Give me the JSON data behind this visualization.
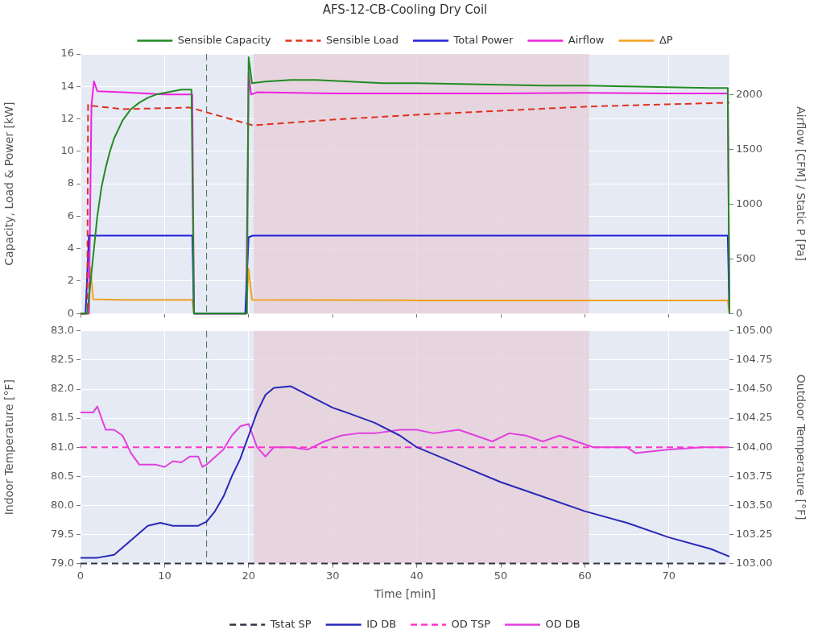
{
  "chart_data": [
    {
      "type": "line",
      "title": "AFS-12-CB-Cooling Dry Coil",
      "ylabel": "Capacity, Load & Power [kW]",
      "y2label": "Airflow [CFM] / Static P [Pa]",
      "xlim": [
        0,
        77.2
      ],
      "xticks": [
        {
          "value": 0,
          "label": null
        },
        {
          "value": 10,
          "label": null
        },
        {
          "value": 20,
          "label": null
        },
        {
          "value": 30,
          "label": null
        },
        {
          "value": 40,
          "label": null
        },
        {
          "value": 50,
          "label": null
        },
        {
          "value": 60,
          "label": null
        },
        {
          "value": 70,
          "label": null
        }
      ],
      "ylim": [
        0,
        16
      ],
      "yticks": [
        0,
        2,
        4,
        6,
        8,
        10,
        12,
        14,
        16
      ],
      "y2lim": [
        0,
        2370
      ],
      "y2ticks": [
        0,
        500,
        1000,
        1500,
        2000
      ],
      "tick_labels": "y",
      "grid": true,
      "legend": "top",
      "marker": "none",
      "bands": [
        {
          "axis": "x",
          "from": 20.6,
          "to": 60.5,
          "color": "#e6d0da"
        }
      ],
      "ref_lines": [
        {
          "axis": "x",
          "value": 15,
          "color": "#3f6f4f",
          "line_style": "dashed"
        }
      ],
      "series": [
        {
          "name": "Sensible Capacity",
          "color": "#228b22",
          "line_style": "solid",
          "x": [
            0,
            0.8,
            1.2,
            1.6,
            2,
            2.5,
            3,
            3.5,
            4,
            5,
            6,
            7,
            8,
            9,
            10,
            11,
            12,
            13.2,
            13.5,
            19.8,
            20,
            20.4,
            22,
            25,
            28,
            32,
            36,
            40,
            45,
            50,
            55,
            60,
            65,
            70,
            75,
            77,
            77.2
          ],
          "values": [
            0,
            0,
            2,
            4,
            6,
            7.8,
            9,
            10,
            10.8,
            11.9,
            12.6,
            13,
            13.3,
            13.5,
            13.6,
            13.7,
            13.8,
            13.8,
            0,
            0,
            15.8,
            14.2,
            14.3,
            14.4,
            14.4,
            14.3,
            14.2,
            14.2,
            14.15,
            14.1,
            14.05,
            14.05,
            14,
            13.95,
            13.9,
            13.9,
            0
          ]
        },
        {
          "name": "Sensible Load",
          "color": "#e03020",
          "line_style": "dashed",
          "x": [
            0,
            0.8,
            0.9,
            1.5,
            5,
            13,
            20.5,
            30,
            40,
            50,
            60,
            70,
            77.2
          ],
          "values": [
            0,
            0,
            12.9,
            12.8,
            12.6,
            12.7,
            11.6,
            11.95,
            12.25,
            12.5,
            12.75,
            12.9,
            13.0
          ]
        },
        {
          "name": "Total Power",
          "color": "#2020dd",
          "line_style": "solid",
          "x": [
            0,
            0.6,
            1,
            13.3,
            13.5,
            19.6,
            20,
            20.5,
            77,
            77.2
          ],
          "values": [
            0,
            0,
            4.8,
            4.8,
            0,
            0,
            4.7,
            4.8,
            4.8,
            0
          ]
        },
        {
          "name": "Airflow",
          "color": "#ee22dd",
          "line_style": "solid",
          "axis": "y2",
          "x": [
            0,
            1,
            1.3,
            1.6,
            2,
            5,
            10,
            13.3,
            13.5,
            19.7,
            20,
            20.3,
            21,
            30,
            40,
            50,
            60,
            70,
            77,
            77.2
          ],
          "values": [
            0,
            0,
            1900,
            2120,
            2030,
            2020,
            2000,
            2000,
            0,
            0,
            2200,
            2000,
            2020,
            2010,
            2010,
            2010,
            2015,
            2010,
            2010,
            0
          ]
        },
        {
          "name": "ΔP",
          "color": "#f0a020",
          "line_style": "solid",
          "axis": "y2",
          "x": [
            0,
            1,
            1.2,
            1.5,
            5,
            13.3,
            13.5,
            19.7,
            20,
            20.4,
            40,
            60,
            77,
            77.2
          ],
          "values": [
            0,
            0,
            415,
            130,
            125,
            125,
            0,
            0,
            410,
            125,
            120,
            120,
            120,
            0
          ]
        }
      ]
    },
    {
      "type": "line",
      "xlabel": "Time [min]",
      "ylabel": "Indoor Temperature [°F]",
      "y2label": "Outdoor Temperature [°F]",
      "xlim": [
        0,
        77.2
      ],
      "xticks": [
        0,
        10,
        20,
        30,
        40,
        50,
        60,
        70
      ],
      "ylim": [
        79,
        83
      ],
      "yticks": [
        {
          "value": 79,
          "label": "79.0"
        },
        {
          "value": 79.5,
          "label": "79.5"
        },
        {
          "value": 80,
          "label": "80.0"
        },
        {
          "value": 80.5,
          "label": "80.5"
        },
        {
          "value": 81,
          "label": "81.0"
        },
        {
          "value": 81.5,
          "label": "81.5"
        },
        {
          "value": 82,
          "label": "82.0"
        },
        {
          "value": 82.5,
          "label": "82.5"
        },
        {
          "value": 83,
          "label": "83.0"
        }
      ],
      "y2lim": [
        103,
        105
      ],
      "y2ticks": [
        {
          "value": 103,
          "label": "103.00"
        },
        {
          "value": 103.25,
          "label": "103.25"
        },
        {
          "value": 103.5,
          "label": "103.50"
        },
        {
          "value": 103.75,
          "label": "103.75"
        },
        {
          "value": 104,
          "label": "104.00"
        },
        {
          "value": 104.25,
          "label": "104.25"
        },
        {
          "value": 104.5,
          "label": "104.50"
        },
        {
          "value": 104.75,
          "label": "104.75"
        },
        {
          "value": 105,
          "label": "105.00"
        }
      ],
      "grid": true,
      "legend": "bottom",
      "marker": "none",
      "bands": [
        {
          "axis": "x",
          "from": 20.6,
          "to": 60.5,
          "color": "#e6d0da"
        }
      ],
      "ref_lines": [
        {
          "axis": "x",
          "value": 15,
          "color": "#3f6f4f",
          "line_style": "dashed"
        }
      ],
      "series": [
        {
          "name": "Tstat SP",
          "color": "#333344",
          "line_style": "dashed",
          "x": [
            0,
            77.2
          ],
          "values": [
            79,
            79
          ]
        },
        {
          "name": "ID DB",
          "color": "#2828b8",
          "line_style": "solid",
          "x": [
            0,
            2,
            4,
            6,
            8,
            9.5,
            11,
            14,
            15,
            16,
            17,
            18,
            19,
            20,
            21,
            22,
            23,
            25,
            27,
            30,
            32,
            35,
            38,
            40,
            45,
            50,
            55,
            60,
            65,
            70,
            75,
            77.2
          ],
          "values": [
            79.1,
            79.1,
            79.15,
            79.4,
            79.65,
            79.7,
            79.65,
            79.65,
            79.72,
            79.9,
            80.15,
            80.5,
            80.8,
            81.2,
            81.6,
            81.9,
            82.02,
            82.05,
            81.9,
            81.68,
            81.58,
            81.42,
            81.2,
            81.0,
            80.7,
            80.4,
            80.15,
            79.9,
            79.7,
            79.45,
            79.25,
            79.12
          ]
        },
        {
          "name": "OD TSP",
          "color": "#ff33cc",
          "line_style": "dashed",
          "axis": "y2",
          "x": [
            0,
            77.2
          ],
          "values": [
            104,
            104
          ]
        },
        {
          "name": "OD DB",
          "color": "#e040e0",
          "line_style": "solid",
          "axis": "y2",
          "x": [
            0,
            1.5,
            2,
            3,
            4,
            5,
            6,
            7,
            9,
            10,
            11,
            12,
            13,
            14,
            14.5,
            15,
            17,
            18,
            19,
            20,
            21,
            22,
            23,
            25,
            27,
            29,
            31,
            33,
            35,
            38,
            40,
            42,
            45,
            47,
            49,
            51,
            53,
            55,
            57,
            59,
            61,
            65,
            66,
            70,
            74,
            77.2
          ],
          "values": [
            104.3,
            104.3,
            104.35,
            104.15,
            104.15,
            104.1,
            103.95,
            103.85,
            103.85,
            103.83,
            103.88,
            103.87,
            103.92,
            103.92,
            103.83,
            103.85,
            103.98,
            104.1,
            104.18,
            104.2,
            104.0,
            103.92,
            104.0,
            104.0,
            103.98,
            104.05,
            104.1,
            104.12,
            104.12,
            104.15,
            104.15,
            104.12,
            104.15,
            104.1,
            104.05,
            104.12,
            104.1,
            104.05,
            104.1,
            104.05,
            104.0,
            104.0,
            103.95,
            103.98,
            104.0,
            104.0
          ]
        }
      ]
    }
  ]
}
